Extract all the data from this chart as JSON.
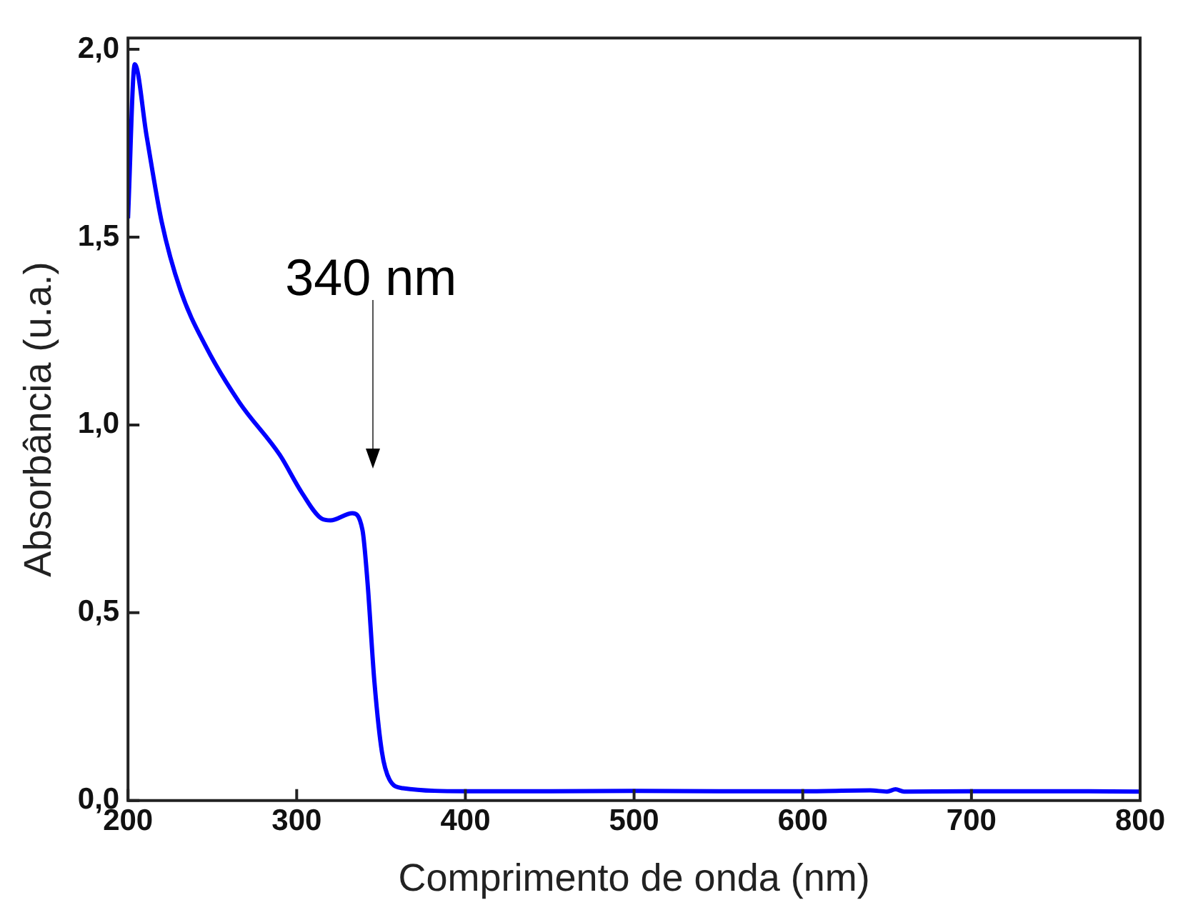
{
  "chart_data": {
    "type": "line",
    "xlabel": "Comprimento de onda (nm)",
    "ylabel": "Absorbância (u.a.)",
    "xlim": [
      200,
      800
    ],
    "ylim": [
      0,
      2.03
    ],
    "xticks": [
      200,
      300,
      400,
      500,
      600,
      700,
      800
    ],
    "yticks": [
      {
        "value": 0,
        "label": "0,0"
      },
      {
        "value": 0.5,
        "label": "0,5"
      },
      {
        "value": 1,
        "label": "1,0"
      },
      {
        "value": 1.5,
        "label": "1,5"
      },
      {
        "value": 2,
        "label": "2,0"
      }
    ],
    "grid": false,
    "legend": false,
    "marker": "none",
    "line_style": "solid",
    "annotations": [
      "340 nm"
    ],
    "series": [
      {
        "color": "#0000ff",
        "x": [
          200,
          204,
          211,
          220,
          231,
          246,
          266,
          290,
          303,
          315,
          320,
          333,
          339,
          342,
          346,
          350.5,
          355,
          363,
          400,
          450,
          500,
          550,
          600,
          640,
          650,
          655,
          660,
          700,
          750,
          800
        ],
        "values": [
          1.55,
          1.96,
          1.77,
          1.54,
          1.36,
          1.21,
          1.06,
          0.92,
          0.82,
          0.75,
          0.746,
          0.765,
          0.72,
          0.58,
          0.32,
          0.13,
          0.056,
          0.033,
          0.025,
          0.025,
          0.026,
          0.025,
          0.025,
          0.027,
          0.024,
          0.03,
          0.024,
          0.025,
          0.025,
          0.024
        ]
      }
    ]
  }
}
